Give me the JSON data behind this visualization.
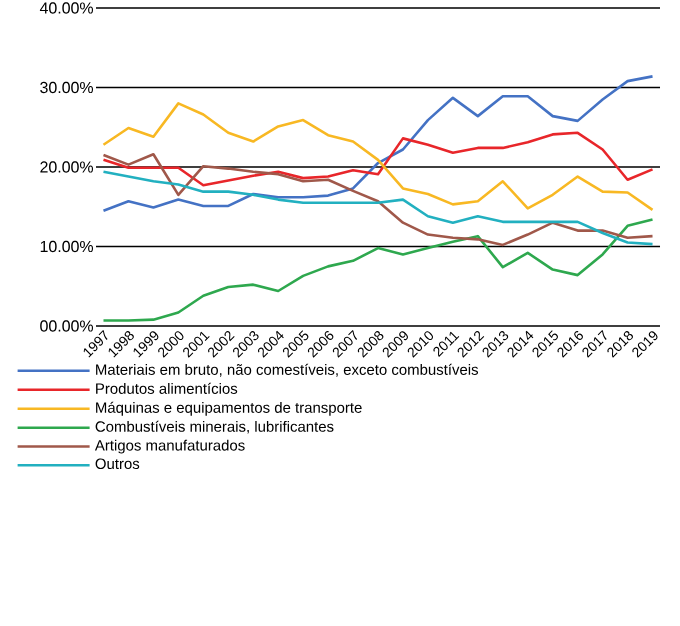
{
  "chart_data": {
    "type": "line",
    "categories": [
      "1997",
      "1998",
      "1999",
      "2000",
      "2001",
      "2002",
      "2003",
      "2004",
      "2005",
      "2006",
      "2007",
      "2008",
      "2009",
      "2010",
      "2011",
      "2012",
      "2013",
      "2014",
      "2015",
      "2016",
      "2017",
      "2018",
      "2019"
    ],
    "series": [
      {
        "name": "Materiais em bruto, não comestíveis, exceto combustíveis",
        "color": "#4472c4",
        "values": [
          14.5,
          15.7,
          14.9,
          15.9,
          15.1,
          15.1,
          16.6,
          16.2,
          16.2,
          16.4,
          17.3,
          20.5,
          22.2,
          25.9,
          28.7,
          26.4,
          28.9,
          28.9,
          26.4,
          25.8,
          28.5,
          30.8,
          31.4
        ]
      },
      {
        "name": "Produtos alimentícios",
        "color": "#e8262a",
        "values": [
          20.9,
          19.9,
          19.9,
          19.9,
          17.7,
          18.3,
          18.9,
          19.4,
          18.6,
          18.8,
          19.6,
          19.1,
          23.6,
          22.8,
          21.8,
          22.4,
          22.4,
          23.1,
          24.1,
          24.3,
          22.2,
          18.4,
          19.7
        ]
      },
      {
        "name": "Máquinas e equipamentos de transporte",
        "color": "#f8b823",
        "values": [
          22.8,
          24.9,
          23.8,
          28.0,
          26.6,
          24.3,
          23.2,
          25.1,
          25.9,
          24.0,
          23.2,
          20.9,
          17.3,
          16.6,
          15.3,
          15.7,
          18.2,
          14.8,
          16.5,
          18.8,
          16.9,
          16.8,
          14.6
        ]
      },
      {
        "name": "Combustíveis minerais, lubrificantes",
        "color": "#2ea84e",
        "values": [
          0.7,
          0.7,
          0.8,
          1.7,
          3.8,
          4.9,
          5.2,
          4.4,
          6.3,
          7.5,
          8.2,
          9.8,
          9.0,
          9.8,
          10.6,
          11.3,
          7.4,
          9.2,
          7.1,
          6.4,
          9.0,
          12.6,
          13.4
        ]
      },
      {
        "name": "Artigos manufaturados",
        "color": "#a0584a",
        "values": [
          21.5,
          20.3,
          21.6,
          16.5,
          20.1,
          19.8,
          19.4,
          19.1,
          18.2,
          18.4,
          17.0,
          15.7,
          13.0,
          11.5,
          11.1,
          10.9,
          10.2,
          11.5,
          13.0,
          12.0,
          12.0,
          11.1,
          11.3
        ]
      },
      {
        "name": "Outros",
        "color": "#22b0c0",
        "values": [
          19.4,
          18.8,
          18.2,
          17.8,
          16.9,
          16.9,
          16.5,
          15.9,
          15.5,
          15.5,
          15.5,
          15.5,
          15.9,
          13.8,
          13.0,
          13.8,
          13.1,
          13.1,
          13.1,
          13.1,
          11.7,
          10.5,
          10.3
        ]
      }
    ],
    "ylim": [
      0,
      40
    ],
    "yticks": [
      {
        "value": 0,
        "label": "00.00%"
      },
      {
        "value": 10,
        "label": "10.00%"
      },
      {
        "value": 20,
        "label": "20.00%"
      },
      {
        "value": 30,
        "label": "30.00%"
      },
      {
        "value": 40,
        "label": "40.00%"
      }
    ],
    "grid": "y",
    "legend": "bottom"
  }
}
